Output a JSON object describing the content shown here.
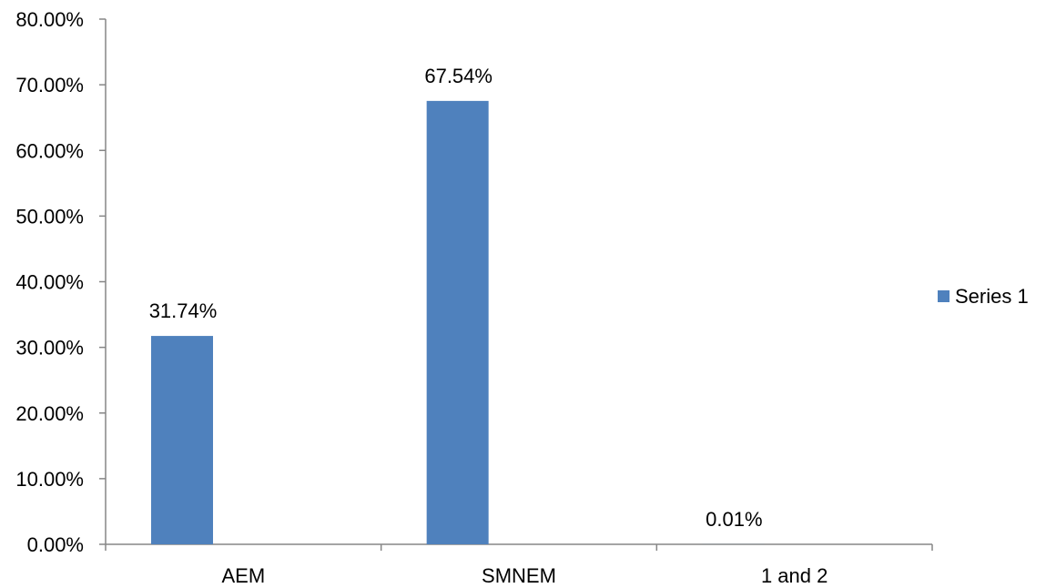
{
  "chart_data": {
    "type": "bar",
    "categories": [
      "AEM",
      "SMNEM",
      "1 and 2"
    ],
    "series": [
      {
        "name": "Series 1",
        "values": [
          31.74,
          67.54,
          0.01
        ],
        "data_labels": [
          "31.74%",
          "67.54%",
          "0.01%"
        ],
        "color": "#4F81BD"
      }
    ],
    "ylim": [
      0,
      80
    ],
    "yticks": [
      0,
      10,
      20,
      30,
      40,
      50,
      60,
      70,
      80
    ],
    "ytick_labels": [
      "0.00%",
      "10.00%",
      "20.00%",
      "30.00%",
      "40.00%",
      "50.00%",
      "60.00%",
      "70.00%",
      "80.00%"
    ],
    "grid": false,
    "legend": {
      "position": "right",
      "entries": [
        "Series 1"
      ]
    },
    "axis_color": "#868686"
  }
}
